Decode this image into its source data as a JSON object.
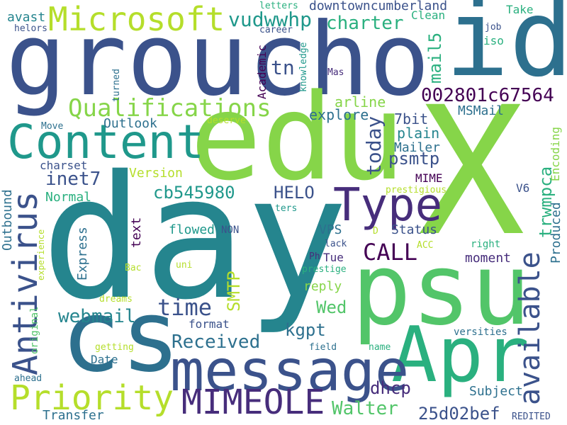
{
  "palette": {
    "background": "#ffffff",
    "lime": "#b5de2b",
    "green": "#86d549",
    "mint": "#52c569",
    "teal_green": "#2ab07f",
    "teal": "#1f988b",
    "cyan_blue": "#25858e",
    "steel_blue": "#2d708e",
    "blue": "#3b528b",
    "indigo": "#472d7b",
    "purple": "#440154"
  },
  "words": [
    {
      "text": "groucho",
      "color": "#3b528b",
      "rotated": false
    },
    {
      "text": "day",
      "color": "#25858e",
      "rotated": false
    },
    {
      "text": "X",
      "color": "#86d549",
      "rotated": false
    },
    {
      "text": "id",
      "color": "#2d708e",
      "rotated": false
    },
    {
      "text": "edu",
      "color": "#86d549",
      "rotated": false
    },
    {
      "text": "psu",
      "color": "#52c569",
      "rotated": false
    },
    {
      "text": "cs",
      "color": "#2d708e",
      "rotated": false
    },
    {
      "text": "Apr",
      "color": "#2ab07f",
      "rotated": false
    },
    {
      "text": "message",
      "color": "#3b528b",
      "rotated": false
    },
    {
      "text": "Content",
      "color": "#1f988b",
      "rotated": false
    },
    {
      "text": "Type",
      "color": "#472d7b",
      "rotated": false
    },
    {
      "text": "Microsoft",
      "color": "#b5de2b",
      "rotated": false
    },
    {
      "text": "Qualifications",
      "color": "#86d549",
      "rotated": false
    },
    {
      "text": "Priority",
      "color": "#b5de2b",
      "rotated": false
    },
    {
      "text": "MIMEOLE",
      "color": "#472d7b",
      "rotated": false
    },
    {
      "text": "Antivirus",
      "color": "#3b528b",
      "rotated": true
    },
    {
      "text": "available",
      "color": "#3b528b",
      "rotated": true
    },
    {
      "text": "CALL",
      "color": "#440154",
      "rotated": false
    },
    {
      "text": "time",
      "color": "#3b528b",
      "rotated": false
    },
    {
      "text": "today",
      "color": "#3b528b",
      "rotated": true
    },
    {
      "text": "webmail",
      "color": "#25858e",
      "rotated": false
    },
    {
      "text": "Received",
      "color": "#2d708e",
      "rotated": false
    },
    {
      "text": "Walter",
      "color": "#52c569",
      "rotated": false
    },
    {
      "text": "25d02bef",
      "color": "#3b528b",
      "rotated": false
    },
    {
      "text": "002801c67564",
      "color": "#440154",
      "rotated": false
    },
    {
      "text": "vudwwhp",
      "color": "#1f988b",
      "rotated": false
    },
    {
      "text": "charter",
      "color": "#2ab07f",
      "rotated": false
    },
    {
      "text": "downtowncumberland",
      "color": "#3b528b",
      "rotated": false
    },
    {
      "text": "tn",
      "color": "#3b528b",
      "rotated": false
    },
    {
      "text": "mail5",
      "color": "#2ab07f",
      "rotated": true
    },
    {
      "text": "psmtp",
      "color": "#3b528b",
      "rotated": false
    },
    {
      "text": "trwmpca",
      "color": "#2ab07f",
      "rotated": true
    },
    {
      "text": "inet7",
      "color": "#3b528b",
      "rotated": false
    },
    {
      "text": "cb545980",
      "color": "#1f988b",
      "rotated": false
    },
    {
      "text": "HELO",
      "color": "#3b528b",
      "rotated": false
    },
    {
      "text": "SMTP",
      "color": "#b5de2b",
      "rotated": true
    },
    {
      "text": "kgpt",
      "color": "#2d708e",
      "rotated": false
    },
    {
      "text": "dhcp",
      "color": "#472d7b",
      "rotated": false
    },
    {
      "text": "Wed",
      "color": "#52c569",
      "rotated": false
    },
    {
      "text": "arline",
      "color": "#86d549",
      "rotated": false
    },
    {
      "text": "explore",
      "color": "#2d708e",
      "rotated": false
    },
    {
      "text": "7bit",
      "color": "#3b528b",
      "rotated": false
    },
    {
      "text": "plain",
      "color": "#25858e",
      "rotated": false
    },
    {
      "text": "Mailer",
      "color": "#2d708e",
      "rotated": false
    },
    {
      "text": "MIME",
      "color": "#440154",
      "rotated": false
    },
    {
      "text": "MSMail",
      "color": "#2d708e",
      "rotated": false
    },
    {
      "text": "Encoding",
      "color": "#86d549",
      "rotated": true
    },
    {
      "text": "V6",
      "color": "#3b528b",
      "rotated": false
    },
    {
      "text": "Produced",
      "color": "#2d708e",
      "rotated": true
    },
    {
      "text": "Outlook",
      "color": "#2d708e",
      "rotated": false
    },
    {
      "text": "charset",
      "color": "#3b528b",
      "rotated": false
    },
    {
      "text": "Version",
      "color": "#b5de2b",
      "rotated": false
    },
    {
      "text": "Normal",
      "color": "#2ab07f",
      "rotated": false
    },
    {
      "text": "Outbound",
      "color": "#2d708e",
      "rotated": true
    },
    {
      "text": "Express",
      "color": "#2d708e",
      "rotated": true
    },
    {
      "text": "text",
      "color": "#440154",
      "rotated": true
    },
    {
      "text": "flowed",
      "color": "#1f988b",
      "rotated": false
    },
    {
      "text": "NON",
      "color": "#3b528b",
      "rotated": false
    },
    {
      "text": "VPS",
      "color": "#2d708e",
      "rotated": false
    },
    {
      "text": "Status",
      "color": "#3b528b",
      "rotated": false
    },
    {
      "text": "Tue",
      "color": "#472d7b",
      "rotated": false
    },
    {
      "text": "moment",
      "color": "#472d7b",
      "rotated": false
    },
    {
      "text": "reply",
      "color": "#86d549",
      "rotated": false
    },
    {
      "text": "format",
      "color": "#3b528b",
      "rotated": false
    },
    {
      "text": "Date",
      "color": "#2d708e",
      "rotated": false
    },
    {
      "text": "Subject",
      "color": "#2d708e",
      "rotated": false
    },
    {
      "text": "Transfer",
      "color": "#2d708e",
      "rotated": false
    },
    {
      "text": "REDITED",
      "color": "#3b528b",
      "rotated": false
    },
    {
      "text": "original",
      "color": "#52c569",
      "rotated": true
    },
    {
      "text": "experience",
      "color": "#b5de2b",
      "rotated": true
    },
    {
      "text": "getting",
      "color": "#b5de2b",
      "rotated": false
    },
    {
      "text": "ahead",
      "color": "#2d708e",
      "rotated": false
    },
    {
      "text": "dreams",
      "color": "#b5de2b",
      "rotated": false
    },
    {
      "text": "field",
      "color": "#2d708e",
      "rotated": false
    },
    {
      "text": "name",
      "color": "#2ab07f",
      "rotated": false
    },
    {
      "text": "versities",
      "color": "#2d708e",
      "rotated": false
    },
    {
      "text": "prestige",
      "color": "#2ab07f",
      "rotated": false
    },
    {
      "text": "Ph",
      "color": "#472d7b",
      "rotated": false
    },
    {
      "text": "lack",
      "color": "#3b528b",
      "rotated": false
    },
    {
      "text": "right",
      "color": "#2ab07f",
      "rotated": false
    },
    {
      "text": "ACC",
      "color": "#b5de2b",
      "rotated": false
    },
    {
      "text": "D",
      "color": "#b5de2b",
      "rotated": false
    },
    {
      "text": "uni",
      "color": "#b5de2b",
      "rotated": false
    },
    {
      "text": "Bac",
      "color": "#b5de2b",
      "rotated": false
    },
    {
      "text": "ters",
      "color": "#1f988b",
      "rotated": false
    },
    {
      "text": "prestigious",
      "color": "#b5de2b",
      "rotated": false
    },
    {
      "text": "deserve",
      "color": "#b5de2b",
      "rotated": false
    },
    {
      "text": "Move",
      "color": "#2d708e",
      "rotated": false
    },
    {
      "text": "turned",
      "color": "#2d708e",
      "rotated": true
    },
    {
      "text": "knowledge",
      "color": "#1f988b",
      "rotated": true
    },
    {
      "text": "Academic",
      "color": "#440154",
      "rotated": true
    },
    {
      "text": "Mas",
      "color": "#472d7b",
      "rotated": false
    },
    {
      "text": "avast",
      "color": "#25858e",
      "rotated": false
    },
    {
      "text": "helors",
      "color": "#3b528b",
      "rotated": false
    },
    {
      "text": "letters",
      "color": "#2ab07f",
      "rotated": false
    },
    {
      "text": "career",
      "color": "#3b528b",
      "rotated": false
    },
    {
      "text": "Clean",
      "color": "#2ab07f",
      "rotated": false
    },
    {
      "text": "Take",
      "color": "#2ab07f",
      "rotated": false
    },
    {
      "text": "job",
      "color": "#3b528b",
      "rotated": false
    },
    {
      "text": "iso",
      "color": "#2ab07f",
      "rotated": false
    }
  ]
}
